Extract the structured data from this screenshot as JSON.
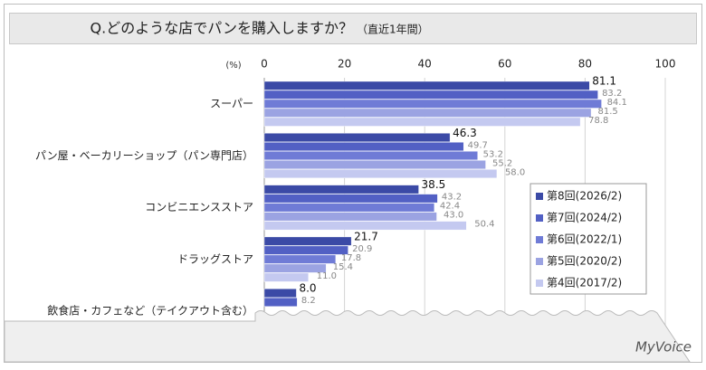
{
  "chart_data": {
    "type": "bar",
    "orientation": "horizontal",
    "title": "Q.どのような店でパンを購入しますか？",
    "subtitle": "（直近1年間）",
    "x_axis_label": "(%)",
    "categories": [
      "スーパー",
      "パン屋・ベーカリーショップ（パン専門店）",
      "コンビニエンスストア",
      "ドラッグストア",
      "飲食店・カフェなど（テイクアウト含む）"
    ],
    "series": [
      {
        "name": "第8回(2026/2)",
        "color": "#3b4aa6",
        "values": [
          81.1,
          46.3,
          38.5,
          21.7,
          8.0
        ],
        "value_labels": [
          "81.1",
          "46.3",
          "38.5",
          "21.7",
          "8.0"
        ]
      },
      {
        "name": "第7回(2024/2)",
        "color": "#5260c4",
        "values": [
          83.2,
          49.7,
          43.2,
          20.9,
          8.2
        ],
        "value_labels": [
          "83.2",
          "49.7",
          "43.2",
          "20.9",
          "8.2"
        ]
      },
      {
        "name": "第6回(2022/1)",
        "color": "#6f7bd6",
        "values": [
          84.1,
          53.2,
          42.4,
          17.8,
          null
        ],
        "value_labels": [
          "84.1",
          "53.2",
          "42.4",
          "17.8",
          null
        ]
      },
      {
        "name": "第5回(2020/2)",
        "color": "#9ba3e2",
        "values": [
          81.5,
          55.2,
          43.0,
          15.4,
          null
        ],
        "value_labels": [
          "81.5",
          "55.2",
          "43.0",
          "15.4",
          null
        ]
      },
      {
        "name": "第4回(2017/2)",
        "color": "#c4c9f0",
        "values": [
          78.8,
          58.0,
          50.4,
          11.0,
          null
        ],
        "value_labels": [
          "78.8",
          "58.0",
          "50.4",
          "11.0",
          null
        ]
      }
    ],
    "xlim": [
      0,
      100
    ],
    "xticks": [
      0,
      20,
      40,
      60,
      80,
      100
    ],
    "grid": true,
    "legend": "right"
  },
  "footer": {
    "logo": "MyVoice"
  }
}
